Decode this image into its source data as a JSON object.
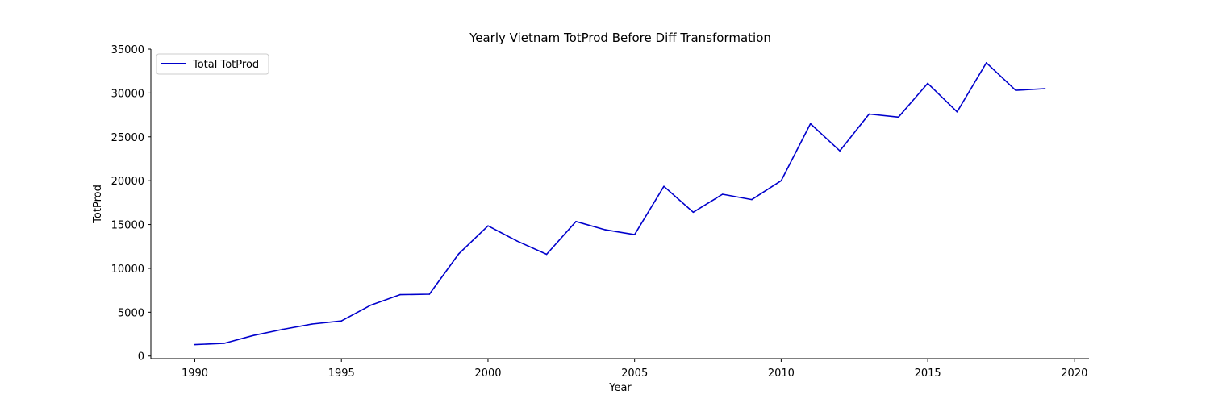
{
  "chart_data": {
    "type": "line",
    "title": "Yearly Vietnam TotProd Before Diff Transformation",
    "xlabel": "Year",
    "ylabel": "TotProd",
    "xlim": [
      1988.5,
      2020.5
    ],
    "ylim": [
      -300,
      35000
    ],
    "xticks": [
      1990,
      1995,
      2000,
      2005,
      2010,
      2015,
      2020
    ],
    "yticks": [
      0,
      5000,
      10000,
      15000,
      20000,
      25000,
      30000,
      35000
    ],
    "grid": false,
    "legend_position": "top-left",
    "series": [
      {
        "name": "Total TotProd",
        "color": "#0000cc",
        "x": [
          1990,
          1991,
          1992,
          1993,
          1994,
          1995,
          1996,
          1997,
          1998,
          1999,
          2000,
          2001,
          2002,
          2003,
          2004,
          2005,
          2006,
          2007,
          2008,
          2009,
          2010,
          2011,
          2012,
          2013,
          2014,
          2015,
          2016,
          2017,
          2018,
          2019
        ],
        "y": [
          1300,
          1450,
          2350,
          3050,
          3650,
          4000,
          5800,
          7000,
          7050,
          11650,
          14850,
          13100,
          11600,
          15350,
          14400,
          13850,
          19350,
          16400,
          18450,
          17850,
          20000,
          26500,
          23400,
          27600,
          27250,
          31100,
          27850,
          33450,
          30300,
          30500
        ]
      }
    ]
  }
}
